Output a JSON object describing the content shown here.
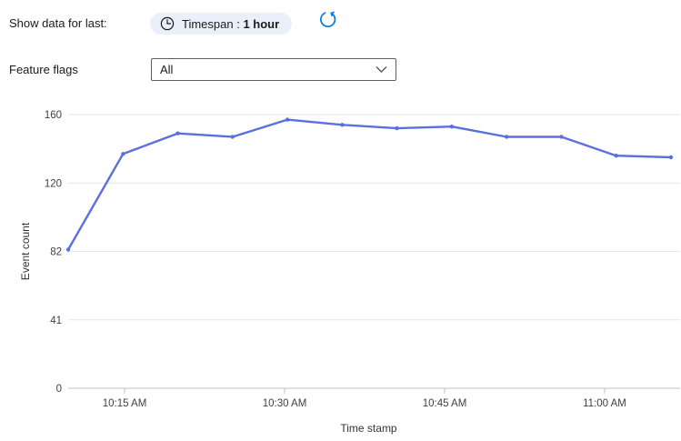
{
  "controls": {
    "show_data_label": "Show data for last:",
    "timespan": {
      "label": "Timespan :",
      "value": "1 hour"
    },
    "feature_flags": {
      "label": "Feature flags",
      "value": "All"
    }
  },
  "colors": {
    "pill_background": "#eaf0fa",
    "refresh_blue": "#0f80e0",
    "line_blue": "#5b6fdf",
    "gridline": "#e6e6e6",
    "axis_line": "#c0c0c0",
    "tick_text": "#404040",
    "label_text": "#333333",
    "dropdown_border": "#605e5c",
    "icon_dark": "#1b1a19"
  },
  "chart_data": {
    "type": "line",
    "title": "",
    "xlabel": "Time stamp",
    "ylabel": "Event count",
    "x": [
      "10:10 AM",
      "10:15 AM",
      "10:20 AM",
      "10:25 AM",
      "10:30 AM",
      "10:35 AM",
      "10:40 AM",
      "10:45 AM",
      "10:50 AM",
      "10:55 AM",
      "11:00 AM",
      "11:05 AM"
    ],
    "values": [
      83,
      137,
      149,
      147,
      157,
      154,
      152,
      153,
      147,
      147,
      136,
      135
    ],
    "y_ticks": [
      0,
      41,
      82,
      120,
      160
    ],
    "y_tick_labels": [
      "0",
      "41",
      "82",
      "120",
      "160"
    ],
    "x_tick_labels": [
      "10:15 AM",
      "10:30 AM",
      "10:45 AM",
      "11:00 AM"
    ],
    "ylim": [
      0,
      160
    ],
    "grid": true,
    "legend": "none",
    "line_color": "#5b6fdf"
  }
}
